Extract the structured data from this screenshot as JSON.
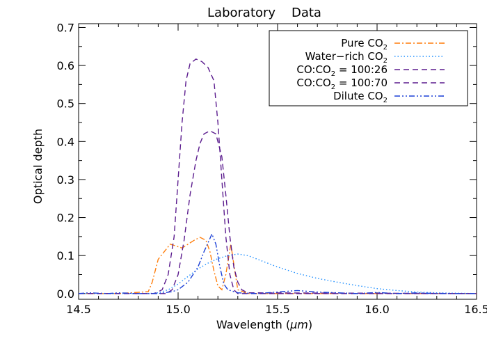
{
  "chart_data": {
    "type": "line",
    "title": "Laboratory    Data",
    "xlabel": "Wavelength (",
    "xlabel_unit": "μm",
    "xlabel_close": ")",
    "ylabel": "Optical depth",
    "xlim": [
      14.5,
      16.5
    ],
    "ylim": [
      -0.015,
      0.71
    ],
    "grid": false,
    "legend_position": "top-right",
    "xticks": [
      14.5,
      15.0,
      15.5,
      16.0,
      16.5
    ],
    "xtick_labels": [
      "14.5",
      "15.0",
      "15.5",
      "16.0",
      "16.5"
    ],
    "yticks": [
      0.0,
      0.1,
      0.2,
      0.3,
      0.4,
      0.5,
      0.6,
      0.7
    ],
    "ytick_labels": [
      "0.0",
      "0.1",
      "0.2",
      "0.3",
      "0.4",
      "0.5",
      "0.6",
      "0.7"
    ],
    "series": [
      {
        "name": "Pure CO",
        "subscript": "2",
        "color": "#ff7f0e",
        "dash": "dashdot",
        "points": [
          [
            14.5,
            0.0
          ],
          [
            14.7,
            0.0
          ],
          [
            14.85,
            0.005
          ],
          [
            14.87,
            0.03
          ],
          [
            14.9,
            0.09
          ],
          [
            14.93,
            0.11
          ],
          [
            14.96,
            0.13
          ],
          [
            14.99,
            0.125
          ],
          [
            15.02,
            0.12
          ],
          [
            15.05,
            0.13
          ],
          [
            15.08,
            0.14
          ],
          [
            15.11,
            0.148
          ],
          [
            15.14,
            0.14
          ],
          [
            15.16,
            0.11
          ],
          [
            15.18,
            0.06
          ],
          [
            15.2,
            0.02
          ],
          [
            15.22,
            0.01
          ],
          [
            15.24,
            0.05
          ],
          [
            15.265,
            0.13
          ],
          [
            15.285,
            0.06
          ],
          [
            15.3,
            0.01
          ],
          [
            15.35,
            0.0
          ],
          [
            16.5,
            0.0
          ]
        ]
      },
      {
        "name": "Water−rich CO",
        "subscript": "2",
        "color": "#1f8fff",
        "dash": "dotted",
        "points": [
          [
            14.5,
            0.0
          ],
          [
            14.85,
            0.0
          ],
          [
            14.9,
            0.002
          ],
          [
            14.95,
            0.01
          ],
          [
            15.0,
            0.025
          ],
          [
            15.05,
            0.045
          ],
          [
            15.1,
            0.065
          ],
          [
            15.15,
            0.08
          ],
          [
            15.2,
            0.092
          ],
          [
            15.25,
            0.1
          ],
          [
            15.3,
            0.104
          ],
          [
            15.35,
            0.1
          ],
          [
            15.4,
            0.09
          ],
          [
            15.5,
            0.07
          ],
          [
            15.6,
            0.053
          ],
          [
            15.7,
            0.04
          ],
          [
            15.8,
            0.03
          ],
          [
            15.9,
            0.021
          ],
          [
            16.0,
            0.013
          ],
          [
            16.1,
            0.008
          ],
          [
            16.2,
            0.004
          ],
          [
            16.3,
            0.002
          ],
          [
            16.5,
            0.0
          ]
        ]
      },
      {
        "name": "CO:CO",
        "subscript": "2",
        "suffix": " = 100:26",
        "color": "#5b1c8e",
        "dash": "dashed",
        "points": [
          [
            14.5,
            0.0
          ],
          [
            14.88,
            0.0
          ],
          [
            14.92,
            0.01
          ],
          [
            14.95,
            0.05
          ],
          [
            14.98,
            0.15
          ],
          [
            15.0,
            0.3
          ],
          [
            15.02,
            0.45
          ],
          [
            15.04,
            0.56
          ],
          [
            15.06,
            0.605
          ],
          [
            15.09,
            0.617
          ],
          [
            15.12,
            0.61
          ],
          [
            15.15,
            0.595
          ],
          [
            15.18,
            0.56
          ],
          [
            15.2,
            0.45
          ],
          [
            15.22,
            0.3
          ],
          [
            15.24,
            0.15
          ],
          [
            15.26,
            0.05
          ],
          [
            15.28,
            0.01
          ],
          [
            15.3,
            0.0
          ],
          [
            16.5,
            0.0
          ]
        ]
      },
      {
        "name": "CO:CO",
        "subscript": "2",
        "suffix": " = 100:70",
        "color": "#5b1c8e",
        "dash": "dashed",
        "points": [
          [
            14.5,
            0.0
          ],
          [
            14.94,
            0.0
          ],
          [
            14.97,
            0.01
          ],
          [
            15.0,
            0.05
          ],
          [
            15.03,
            0.14
          ],
          [
            15.06,
            0.26
          ],
          [
            15.09,
            0.35
          ],
          [
            15.11,
            0.395
          ],
          [
            15.13,
            0.42
          ],
          [
            15.16,
            0.428
          ],
          [
            15.19,
            0.42
          ],
          [
            15.22,
            0.36
          ],
          [
            15.24,
            0.26
          ],
          [
            15.26,
            0.15
          ],
          [
            15.28,
            0.07
          ],
          [
            15.3,
            0.03
          ],
          [
            15.32,
            0.01
          ],
          [
            15.35,
            0.002
          ],
          [
            16.5,
            0.0
          ]
        ]
      },
      {
        "name": "Dilute CO",
        "subscript": "2",
        "color": "#1a3fd6",
        "dash": "dashdotdot",
        "points": [
          [
            14.5,
            0.0
          ],
          [
            14.55,
            0.002
          ],
          [
            14.65,
            0.0
          ],
          [
            14.7,
            0.002
          ],
          [
            14.8,
            0.0
          ],
          [
            14.9,
            0.0
          ],
          [
            14.97,
            0.005
          ],
          [
            15.0,
            0.01
          ],
          [
            15.05,
            0.03
          ],
          [
            15.1,
            0.07
          ],
          [
            15.13,
            0.11
          ],
          [
            15.16,
            0.145
          ],
          [
            15.17,
            0.157
          ],
          [
            15.19,
            0.13
          ],
          [
            15.21,
            0.07
          ],
          [
            15.23,
            0.025
          ],
          [
            15.25,
            0.01
          ],
          [
            15.3,
            0.002
          ],
          [
            15.4,
            0.0
          ],
          [
            15.5,
            0.004
          ],
          [
            15.6,
            0.008
          ],
          [
            15.7,
            0.004
          ],
          [
            15.8,
            0.002
          ],
          [
            15.9,
            0.0
          ],
          [
            16.0,
            0.003
          ],
          [
            16.1,
            0.0
          ],
          [
            16.2,
            0.002
          ],
          [
            16.3,
            0.0
          ],
          [
            16.5,
            0.0
          ]
        ]
      }
    ]
  }
}
